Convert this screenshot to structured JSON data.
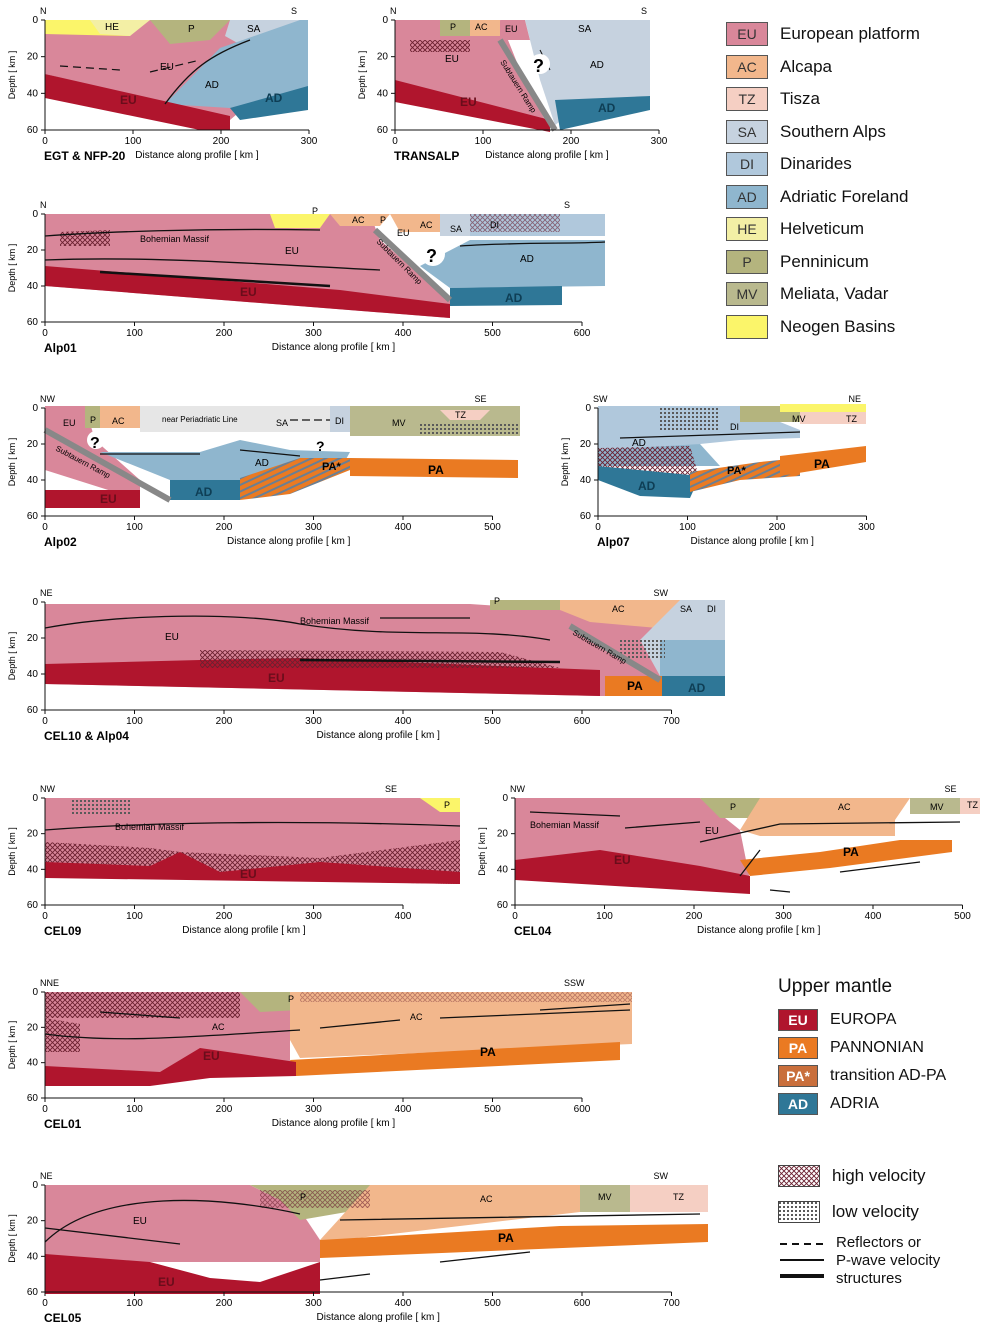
{
  "units_legend": [
    {
      "code": "EU",
      "label": "European platform",
      "color": "#d9879a"
    },
    {
      "code": "AC",
      "label": "Alcapa",
      "color": "#f2b78c"
    },
    {
      "code": "TZ",
      "label": "Tisza",
      "color": "#f5cfc3"
    },
    {
      "code": "SA",
      "label": "Southern Alps",
      "color": "#c6d2df"
    },
    {
      "code": "DI",
      "label": "Dinarides",
      "color": "#b0c8dc"
    },
    {
      "code": "AD",
      "label": "Adriatic Foreland",
      "color": "#8fb6ce"
    },
    {
      "code": "HE",
      "label": "Helveticum",
      "color": "#f3efa5"
    },
    {
      "code": "P",
      "label": "Penninicum",
      "color": "#b4b47e"
    },
    {
      "code": "MV",
      "label": "Meliata, Vadar",
      "color": "#b9b98e"
    },
    {
      "code": "",
      "label": "Neogen Basins",
      "color": "#fbf56a"
    }
  ],
  "upper_mantle": {
    "title": "Upper mantle",
    "items": [
      {
        "code": "EU",
        "label": "EUROPA",
        "color": "#b0152d"
      },
      {
        "code": "PA",
        "label": "PANNONIAN",
        "color": "#ea7a22"
      },
      {
        "code": "PA*",
        "label": "transition AD-PA",
        "color": "#c96f3c"
      },
      {
        "code": "AD",
        "label": "ADRIA",
        "color": "#2f7797"
      }
    ]
  },
  "pattern_legend": [
    {
      "label": "high velocity",
      "pattern": "cross-hatch"
    },
    {
      "label": "low velocity",
      "pattern": "dotted-grid"
    }
  ],
  "line_legend": {
    "line1": "Reflectors or",
    "line2": "P-wave velocity",
    "line3": "structures"
  },
  "axis": {
    "ylabel": "Depth [ km ]",
    "xlabel": "Distance along profile  [ km ]"
  },
  "profiles": [
    {
      "name": "EGT & NFP-20",
      "left_dir": "N",
      "right_dir": "S",
      "xticks": [
        "0",
        "100",
        "200",
        "300"
      ],
      "yticks": [
        "0",
        "20",
        "40",
        "60"
      ],
      "units": [
        "HE",
        "P",
        "SA",
        "EU",
        "AD",
        "EU",
        "AD"
      ]
    },
    {
      "name": "TRANSALP",
      "left_dir": "N",
      "right_dir": "S",
      "xticks": [
        "0",
        "100",
        "200",
        "300"
      ],
      "yticks": [
        "0",
        "20",
        "40",
        "60"
      ],
      "units": [
        "P",
        "AC",
        "EU",
        "SA",
        "EU",
        "AD",
        "EU",
        "AD"
      ],
      "notes": [
        "?",
        "Subtauern Ramp"
      ]
    },
    {
      "name": "Alp01",
      "left_dir": "N",
      "right_dir": "S",
      "xticks": [
        "0",
        "100",
        "200",
        "300",
        "400",
        "500",
        "600"
      ],
      "yticks": [
        "0",
        "20",
        "40",
        "60"
      ],
      "units": [
        "P",
        "AC",
        "P",
        "AC",
        "EU",
        "SA",
        "DI",
        "EU",
        "AD",
        "EU",
        "AD"
      ],
      "notes": [
        "Bohemian Massif",
        "Subtauern Ramp",
        "?"
      ]
    },
    {
      "name": "Alp02",
      "left_dir": "NW",
      "right_dir": "SE",
      "xticks": [
        "0",
        "100",
        "200",
        "300",
        "400",
        "500"
      ],
      "yticks": [
        "0",
        "20",
        "40",
        "60"
      ],
      "units": [
        "EU",
        "P",
        "AC",
        "SA",
        "DI",
        "MV",
        "TZ",
        "AD",
        "PA*",
        "PA",
        "EU",
        "AD"
      ],
      "notes": [
        "near Periadriatic Line",
        "Subtauern Ramp",
        "?",
        "?"
      ]
    },
    {
      "name": "Alp07",
      "left_dir": "SW",
      "right_dir": "NE",
      "xticks": [
        "0",
        "100",
        "200",
        "300"
      ],
      "yticks": [
        "0",
        "20",
        "40",
        "60"
      ],
      "units": [
        "DI",
        "MV",
        "TZ",
        "AD",
        "PA*",
        "PA",
        "AD"
      ]
    },
    {
      "name": "CEL10 & Alp04",
      "left_dir": "NE",
      "right_dir": "SW",
      "xticks": [
        "0",
        "100",
        "200",
        "300",
        "400",
        "500",
        "600",
        "700"
      ],
      "yticks": [
        "0",
        "20",
        "40",
        "60"
      ],
      "units": [
        "P",
        "AC",
        "SA",
        "DI",
        "EU",
        "EU",
        "PA",
        "AD"
      ],
      "notes": [
        "Bohemian Massif",
        "Subtauern Ramp"
      ]
    },
    {
      "name": "CEL09",
      "left_dir": "NW",
      "right_dir": "SE",
      "xticks": [
        "0",
        "100",
        "200",
        "300",
        "400"
      ],
      "yticks": [
        "0",
        "20",
        "40",
        "60"
      ],
      "units": [
        "P",
        "EU"
      ],
      "notes": [
        "Bohemian Massif"
      ]
    },
    {
      "name": "CEL04",
      "left_dir": "NW",
      "right_dir": "SE",
      "xticks": [
        "0",
        "100",
        "200",
        "300",
        "400",
        "500"
      ],
      "yticks": [
        "0",
        "20",
        "40",
        "60"
      ],
      "units": [
        "P",
        "AC",
        "MV",
        "TZ",
        "EU",
        "EU",
        "PA"
      ],
      "notes": [
        "Bohemian Massif"
      ]
    },
    {
      "name": "CEL01",
      "left_dir": "NNE",
      "right_dir": "SSW",
      "xticks": [
        "0",
        "100",
        "200",
        "300",
        "400",
        "500",
        "600"
      ],
      "yticks": [
        "0",
        "20",
        "40",
        "60"
      ],
      "units": [
        "P",
        "AC",
        "AC",
        "EU",
        "PA"
      ]
    },
    {
      "name": "CEL05",
      "left_dir": "NE",
      "right_dir": "SW",
      "xticks": [
        "0",
        "100",
        "200",
        "300",
        "400",
        "500",
        "600",
        "700"
      ],
      "yticks": [
        "0",
        "20",
        "40",
        "60"
      ],
      "units": [
        "P",
        "AC",
        "MV",
        "TZ",
        "EU",
        "PA",
        "EU"
      ]
    }
  ]
}
